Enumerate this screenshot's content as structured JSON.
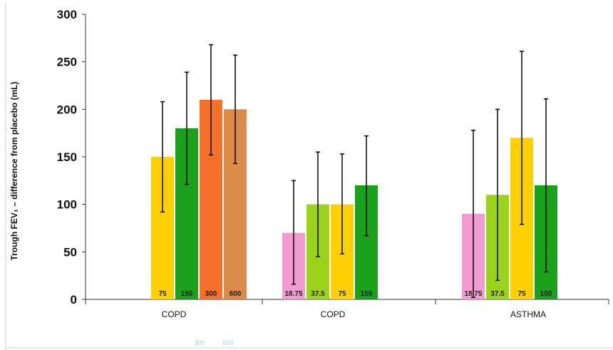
{
  "chart_data": {
    "type": "bar",
    "ylabel": "Trough FEV₁ – difference from placebo (mL)",
    "ylim": [
      0,
      300
    ],
    "yticks": [
      0,
      50,
      100,
      150,
      200,
      250,
      300
    ],
    "grid": false,
    "groups": [
      {
        "category": "COPD",
        "bars": [
          {
            "label": "75",
            "value": 150,
            "err_low": 92,
            "err_high": 208,
            "color": "#ffd000"
          },
          {
            "label": "150",
            "value": 180,
            "err_low": 121,
            "err_high": 239,
            "color": "#1aa01a"
          },
          {
            "label": "300",
            "value": 210,
            "err_low": 152,
            "err_high": 268,
            "color": "#f5702a"
          },
          {
            "label": "600",
            "value": 200,
            "err_low": 143,
            "err_high": 257,
            "color": "#dc8a48"
          }
        ]
      },
      {
        "category": "COPD",
        "bars": [
          {
            "label": "18.75",
            "value": 70,
            "err_low": 16,
            "err_high": 125,
            "color": "#f29bd0"
          },
          {
            "label": "37.5",
            "value": 100,
            "err_low": 45,
            "err_high": 155,
            "color": "#9bd21a"
          },
          {
            "label": "75",
            "value": 100,
            "err_low": 48,
            "err_high": 153,
            "color": "#ffd000"
          },
          {
            "label": "150",
            "value": 120,
            "err_low": 67,
            "err_high": 172,
            "color": "#1aa01a"
          }
        ]
      },
      {
        "category": "ASTHMA",
        "bars": [
          {
            "label": "18.75",
            "value": 90,
            "err_low": 2,
            "err_high": 178,
            "color": "#f29bd0"
          },
          {
            "label": "37.5",
            "value": 110,
            "err_low": 20,
            "err_high": 200,
            "color": "#9bd21a"
          },
          {
            "label": "75",
            "value": 170,
            "err_low": 79,
            "err_high": 261,
            "color": "#ffd000"
          },
          {
            "label": "150",
            "value": 120,
            "err_low": 29,
            "err_high": 211,
            "color": "#1aa01a"
          }
        ]
      }
    ],
    "ghost_labels": [
      "300",
      "600"
    ]
  }
}
